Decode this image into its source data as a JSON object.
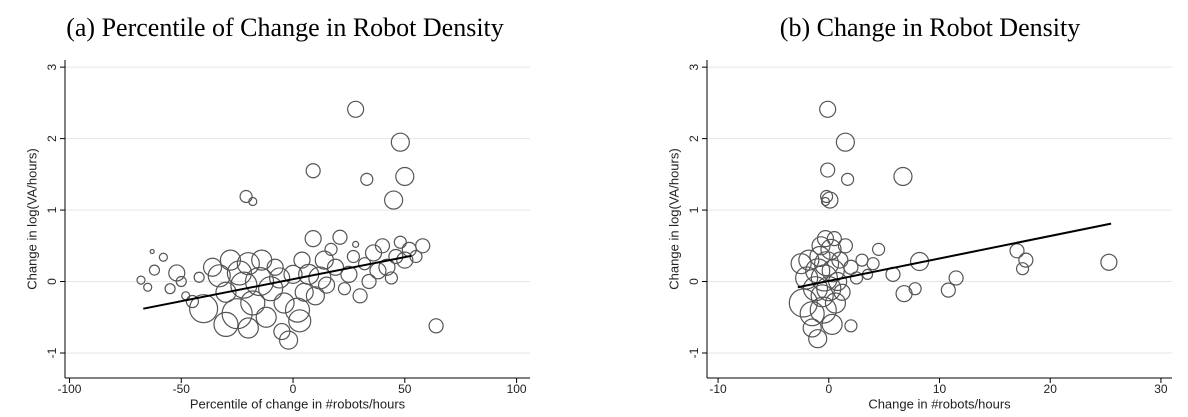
{
  "chart_data": [
    {
      "type": "scatter",
      "title": "(a) Percentile of Change in Robot Density",
      "x_label": "Percentile of change in #robots/hours",
      "y_label": "Change in log(VA/hours)",
      "xlim": [
        -102,
        106
      ],
      "ylim": [
        -1.35,
        3.1
      ],
      "xticks": [
        -100,
        -50,
        0,
        50,
        100
      ],
      "yticks": [
        -1,
        0,
        1,
        2,
        3
      ],
      "grid": true,
      "color": "#555555",
      "x": [
        -68,
        -65,
        -63,
        -62,
        -58,
        -55,
        -52,
        -50,
        -48,
        -45,
        -42,
        -40,
        -36,
        -33,
        -30,
        -28,
        -25,
        -24,
        -22,
        -20,
        -18,
        -15,
        -14,
        -12,
        -10,
        -8,
        -6,
        -4,
        -2,
        0,
        2,
        4,
        5,
        7,
        9,
        10,
        12,
        14,
        15,
        17,
        19,
        21,
        23,
        25,
        27,
        30,
        32,
        34,
        36,
        38,
        40,
        42,
        44,
        46,
        48,
        50,
        52,
        55,
        58,
        28,
        9,
        48,
        50,
        33,
        45,
        -21,
        -18,
        64,
        3,
        -30,
        -20,
        -5,
        28
      ],
      "values": [
        0.02,
        -0.08,
        0.42,
        0.16,
        0.34,
        -0.1,
        0.12,
        0.0,
        -0.2,
        -0.28,
        0.06,
        -0.38,
        0.2,
        0.08,
        -0.15,
        0.3,
        -0.45,
        0.12,
        -0.05,
        0.25,
        -0.3,
        0.0,
        0.3,
        -0.5,
        -0.1,
        0.2,
        0.05,
        -0.3,
        -0.82,
        0.1,
        -0.4,
        0.3,
        -0.15,
        0.1,
        0.6,
        -0.2,
        0.05,
        0.3,
        -0.05,
        0.45,
        0.2,
        0.62,
        -0.1,
        0.1,
        0.35,
        -0.2,
        0.25,
        0.0,
        0.4,
        0.15,
        0.5,
        0.2,
        0.05,
        0.35,
        0.55,
        0.3,
        0.45,
        0.35,
        0.5,
        2.41,
        1.55,
        1.95,
        1.47,
        1.43,
        1.14,
        1.19,
        1.12,
        -0.62,
        -0.55,
        -0.6,
        -0.65,
        -0.7,
        0.52
      ],
      "sizes": [
        4,
        4,
        2,
        5,
        4,
        5,
        8,
        5,
        4,
        6,
        5,
        14,
        9,
        11,
        10,
        10,
        15,
        12,
        13,
        11,
        12,
        14,
        10,
        10,
        12,
        8,
        10,
        10,
        9,
        9,
        12,
        8,
        9,
        10,
        8,
        9,
        11,
        9,
        8,
        6,
        8,
        7,
        6,
        8,
        6,
        7,
        6,
        7,
        8,
        8,
        7,
        8,
        6,
        7,
        6,
        8,
        7,
        6,
        7,
        8,
        7,
        9,
        9,
        6,
        9,
        6,
        4,
        7,
        11,
        12,
        10,
        8,
        3
      ],
      "fit_line": {
        "x": [
          -67,
          53
        ],
        "values": [
          -0.38,
          0.36
        ],
        "color": "#000000"
      }
    },
    {
      "type": "scatter",
      "title": "(b) Change in Robot Density",
      "x_label": "Change in #robots/hours",
      "y_label": "Change in log(VA/hours)",
      "xlim": [
        -11,
        31
      ],
      "ylim": [
        -1.35,
        3.1
      ],
      "xticks": [
        -10,
        0,
        10,
        20,
        30
      ],
      "yticks": [
        -1,
        0,
        1,
        2,
        3
      ],
      "grid": true,
      "color": "#555555",
      "x": [
        -0.1,
        -0.1,
        1.5,
        6.7,
        1.7,
        0.1,
        -0.2,
        -0.3,
        4.5,
        5.8,
        6.8,
        8.2,
        7.8,
        10.8,
        11.5,
        17,
        17.5,
        17.8,
        25.3,
        -1,
        -2.3,
        -1.5,
        -0.5,
        0.3,
        2,
        -2.5,
        -2,
        -1.8,
        -1.2,
        -1,
        -0.8,
        -0.6,
        -0.4,
        -0.2,
        0,
        0.2,
        0.4,
        0.6,
        0.8,
        1,
        1.2,
        1.5,
        2,
        2.5,
        3,
        3.5,
        4,
        -0.3,
        0.5,
        -1.5,
        -0.7
      ],
      "values": [
        2.41,
        1.56,
        1.95,
        1.47,
        1.43,
        1.14,
        1.19,
        1.12,
        0.45,
        0.1,
        -0.17,
        0.28,
        -0.1,
        -0.12,
        0.05,
        0.43,
        0.18,
        0.3,
        0.27,
        -0.8,
        -0.3,
        -0.45,
        -0.4,
        -0.6,
        -0.62,
        0.25,
        0.05,
        0.3,
        -0.1,
        0.15,
        0.35,
        -0.2,
        0.05,
        0.25,
        -0.1,
        0.45,
        0.15,
        -0.3,
        0.0,
        0.3,
        -0.15,
        0.5,
        0.2,
        0.05,
        0.3,
        0.1,
        0.25,
        0.6,
        0.6,
        -0.65,
        0.5
      ],
      "sizes": [
        8,
        7,
        9,
        9,
        6,
        8,
        6,
        4,
        6,
        7,
        8,
        9,
        6,
        7,
        7,
        7,
        6,
        7,
        8,
        9,
        14,
        12,
        13,
        10,
        6,
        10,
        11,
        10,
        12,
        12,
        10,
        11,
        13,
        12,
        12,
        10,
        11,
        10,
        9,
        8,
        8,
        7,
        7,
        6,
        6,
        5,
        6,
        8,
        7,
        9,
        9
      ],
      "fit_line": {
        "x": [
          -2.8,
          25.5
        ],
        "values": [
          -0.08,
          0.81
        ],
        "color": "#000000"
      }
    }
  ]
}
